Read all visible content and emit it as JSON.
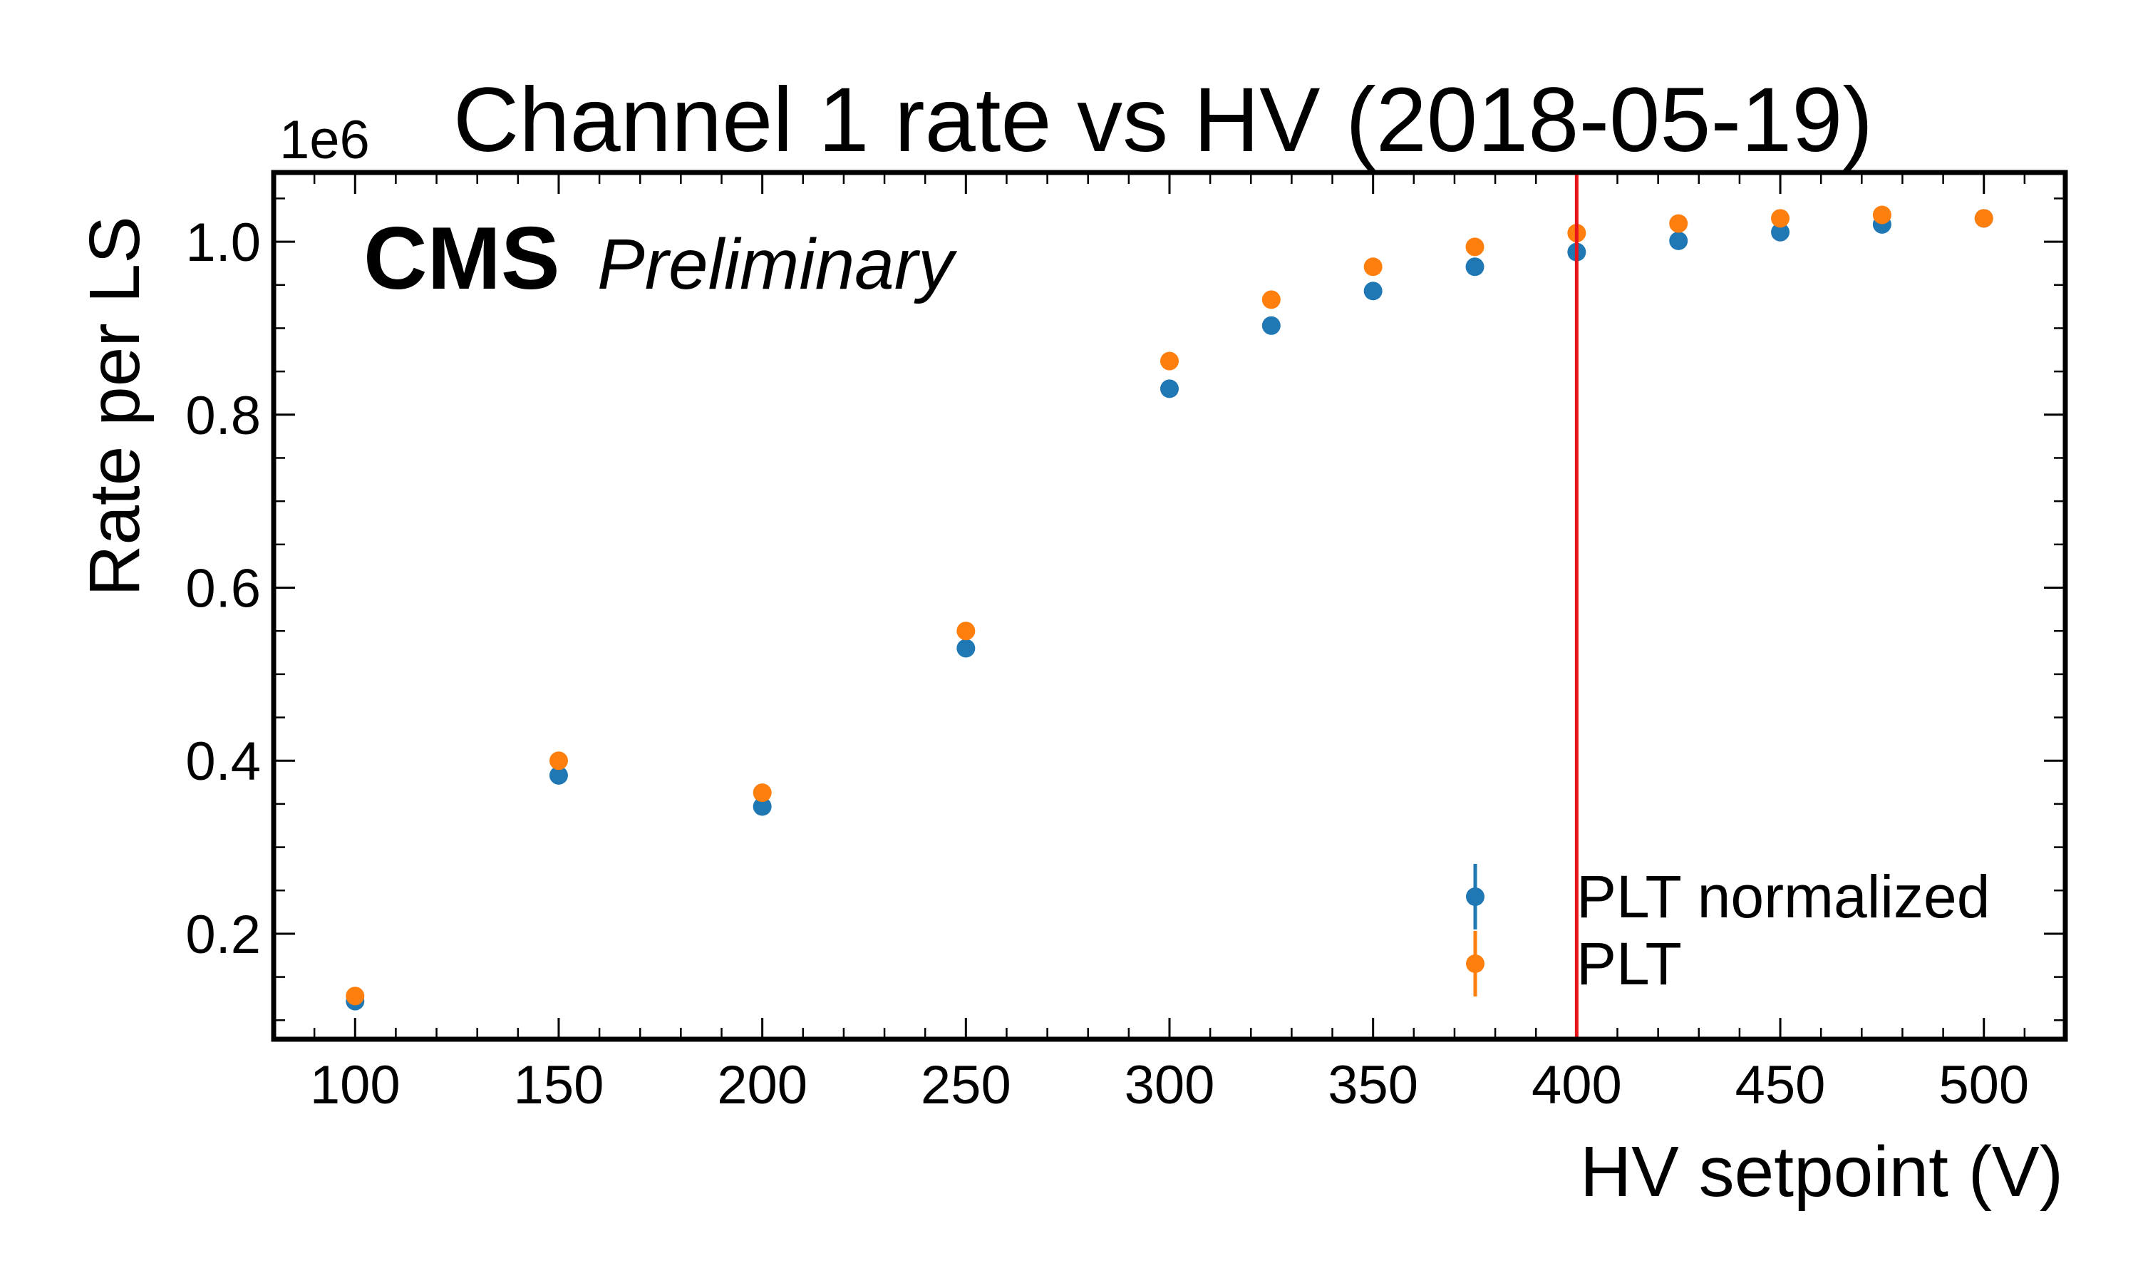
{
  "chart_data": {
    "type": "scatter",
    "title": "Channel 1 rate vs HV (2018-05-19)",
    "xlabel": "HV setpoint (V)",
    "ylabel": "Rate per LS",
    "y_offset_label": "1e6",
    "y_scale_factor": 1000000,
    "xlim": [
      80,
      520
    ],
    "ylim": [
      0.078,
      1.08
    ],
    "x_ticks": [
      100,
      150,
      200,
      250,
      300,
      350,
      400,
      450,
      500
    ],
    "x_tick_labels": [
      "100",
      "150",
      "200",
      "250",
      "300",
      "350",
      "400",
      "450",
      "500"
    ],
    "y_ticks": [
      0.2,
      0.4,
      0.6,
      0.8,
      1.0
    ],
    "y_tick_labels": [
      "0.2",
      "0.4",
      "0.6",
      "0.8",
      "1.0"
    ],
    "grid": false,
    "annotation": {
      "bold": "CMS",
      "italic": "Preliminary"
    },
    "vline": {
      "x": 400,
      "color": "#e8141b"
    },
    "legend": {
      "placement": "lower-right"
    },
    "series": [
      {
        "name": "PLT normalized",
        "color": "#1f77b4",
        "x": [
          100,
          150,
          200,
          250,
          300,
          325,
          350,
          375,
          400,
          425,
          450,
          475,
          500
        ],
        "y": [
          0.122,
          0.383,
          0.347,
          0.53,
          0.83,
          0.903,
          0.943,
          0.971,
          0.988,
          1.001,
          1.011,
          1.02,
          1.027
        ]
      },
      {
        "name": "PLT",
        "color": "#ff7f0e",
        "x": [
          100,
          150,
          200,
          250,
          300,
          325,
          350,
          375,
          400,
          425,
          450,
          475,
          500
        ],
        "y": [
          0.128,
          0.4,
          0.363,
          0.55,
          0.862,
          0.933,
          0.971,
          0.994,
          1.01,
          1.021,
          1.027,
          1.031,
          1.027
        ]
      }
    ]
  }
}
